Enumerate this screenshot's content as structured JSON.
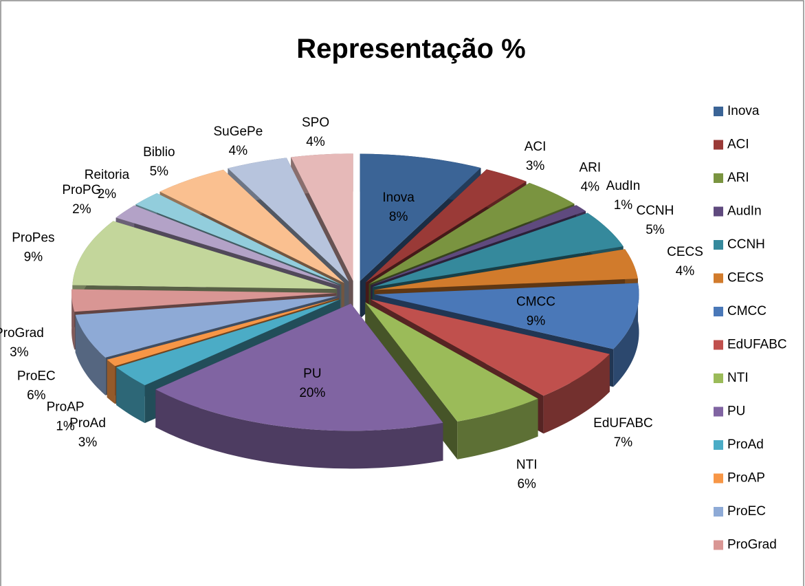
{
  "chart_data": {
    "type": "pie3d",
    "title": "Representação %",
    "categories": [
      "Inova",
      "ACI",
      "ARI",
      "AudIn",
      "CCNH",
      "CECS",
      "CMCC",
      "EdUFABC",
      "NTI",
      "PU",
      "ProAd",
      "ProAP",
      "ProEC",
      "ProGrad",
      "ProPes",
      "ProPG",
      "Reitoria",
      "Biblio",
      "SuGePe",
      "SPO"
    ],
    "values": [
      8,
      3,
      4,
      1,
      5,
      4,
      9,
      7,
      6,
      20,
      3,
      1,
      6,
      3,
      9,
      2,
      2,
      5,
      4,
      4
    ],
    "value_labels": [
      "8%",
      "3%",
      "4%",
      "1%",
      "5%",
      "4%",
      "9%",
      "7%",
      "6%",
      "20%",
      "3%",
      "1%",
      "6%",
      "3%",
      "9%",
      "2%",
      "2%",
      "5%",
      "4%",
      "4%"
    ],
    "colors": [
      "#3b6496",
      "#9a3a37",
      "#7a9440",
      "#5f4a7e",
      "#35899c",
      "#d17b2c",
      "#4a78b8",
      "#c0504d",
      "#9bbb59",
      "#8064a2",
      "#4bacc6",
      "#f79646",
      "#8eaad6",
      "#d99694",
      "#c3d69b",
      "#b3a2c7",
      "#92cddc",
      "#fac090",
      "#b7c4dd",
      "#e6b9b8"
    ],
    "legend_position": "right"
  }
}
